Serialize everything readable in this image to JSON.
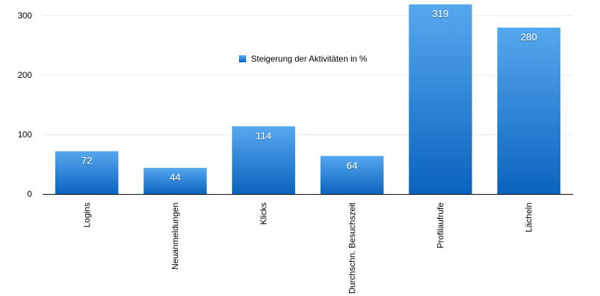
{
  "chart_data": {
    "type": "bar",
    "categories": [
      "Logins",
      "Neuanmeldungen",
      "Klicks",
      "Durchschn. Besuchszeit",
      "Profilaufrufe",
      "Lächeln"
    ],
    "series": [
      {
        "name": "Steigerung der Aktivitäten in %",
        "values": [
          72,
          44,
          114,
          64,
          319,
          280
        ]
      }
    ],
    "ylim": [
      0,
      330
    ],
    "yticks": [
      0,
      100,
      200,
      300
    ],
    "grid": true,
    "legend_position": "top-center",
    "bar_color_top": "#56a8ee",
    "bar_color_bottom": "#0a63bd"
  }
}
